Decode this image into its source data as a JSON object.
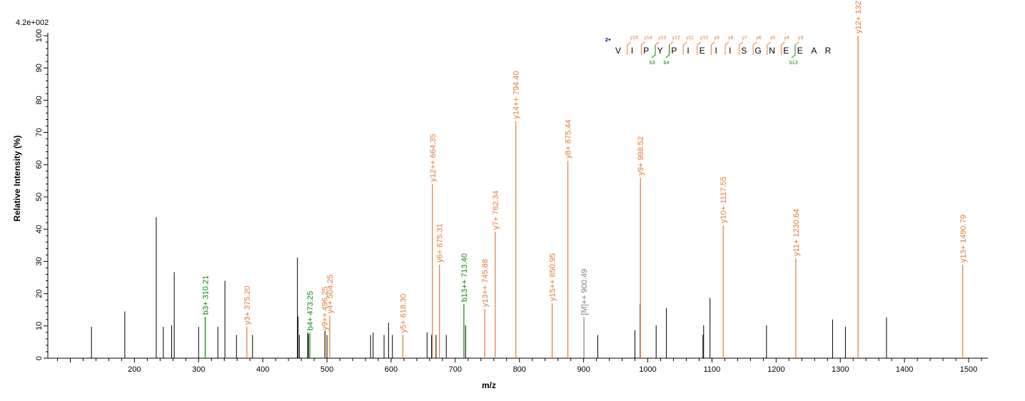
{
  "chart_data": {
    "type": "bar",
    "title": "",
    "scale_label": "4.2e+002",
    "xlabel": "m/z",
    "ylabel": "Relative  Intensity (%)",
    "xlim": [
      65,
      1530
    ],
    "ylim": [
      0,
      100
    ],
    "x_ticks": [
      200,
      300,
      400,
      500,
      600,
      700,
      800,
      900,
      1000,
      1100,
      1200,
      1300,
      1400,
      1500
    ],
    "y_ticks": [
      0,
      10,
      20,
      30,
      40,
      50,
      60,
      70,
      80,
      90,
      100
    ],
    "grid": false,
    "colors": {
      "y_ion": "#E07B39",
      "b_ion": "#0A8A0A",
      "precursor": "#808080",
      "unannotated": "#000000",
      "charge": "#00008B"
    },
    "unannotated_peaks": [
      {
        "mz": 133,
        "intensity": 9.7
      },
      {
        "mz": 185,
        "intensity": 14.5
      },
      {
        "mz": 234,
        "intensity": 43.7
      },
      {
        "mz": 245,
        "intensity": 9.7
      },
      {
        "mz": 258,
        "intensity": 10.2
      },
      {
        "mz": 262,
        "intensity": 26.7
      },
      {
        "mz": 300,
        "intensity": 9.7
      },
      {
        "mz": 330,
        "intensity": 9.7
      },
      {
        "mz": 341,
        "intensity": 24.0
      },
      {
        "mz": 359,
        "intensity": 7.2
      },
      {
        "mz": 384,
        "intensity": 7.2
      },
      {
        "mz": 454,
        "intensity": 31.2
      },
      {
        "mz": 455,
        "intensity": 12.9
      },
      {
        "mz": 457,
        "intensity": 7.2
      },
      {
        "mz": 470,
        "intensity": 8.0
      },
      {
        "mz": 471,
        "intensity": 7.5
      },
      {
        "mz": 497,
        "intensity": 8.5
      },
      {
        "mz": 500,
        "intensity": 7.2
      },
      {
        "mz": 568,
        "intensity": 7.2
      },
      {
        "mz": 572,
        "intensity": 8.0
      },
      {
        "mz": 589,
        "intensity": 7.2
      },
      {
        "mz": 596,
        "intensity": 11.0
      },
      {
        "mz": 602,
        "intensity": 7.2
      },
      {
        "mz": 656,
        "intensity": 8.0
      },
      {
        "mz": 663,
        "intensity": 7.2
      },
      {
        "mz": 670,
        "intensity": 7.2
      },
      {
        "mz": 686,
        "intensity": 7.2
      },
      {
        "mz": 716,
        "intensity": 10.2
      },
      {
        "mz": 922,
        "intensity": 7.2
      },
      {
        "mz": 980,
        "intensity": 8.7
      },
      {
        "mz": 988,
        "intensity": 16.9
      },
      {
        "mz": 1013,
        "intensity": 10.2
      },
      {
        "mz": 1029,
        "intensity": 15.5
      },
      {
        "mz": 1086,
        "intensity": 7.2
      },
      {
        "mz": 1087,
        "intensity": 10.2
      },
      {
        "mz": 1097,
        "intensity": 18.7
      },
      {
        "mz": 1185,
        "intensity": 10.2
      },
      {
        "mz": 1288,
        "intensity": 12.0
      },
      {
        "mz": 1308,
        "intensity": 9.7
      },
      {
        "mz": 1372,
        "intensity": 12.7
      }
    ],
    "annotated_peaks": [
      {
        "mz": 310.21,
        "intensity": 12.8,
        "label": "b3+ 310.21",
        "ion": "b"
      },
      {
        "mz": 375.2,
        "intensity": 9.7,
        "label": "y3+ 375.20",
        "ion": "y"
      },
      {
        "mz": 473.25,
        "intensity": 7.9,
        "label": "b4+ 473.25",
        "ion": "b"
      },
      {
        "mz": 496.25,
        "intensity": 8.0,
        "label": "y9++ 496.25",
        "ion": "y"
      },
      {
        "mz": 504.25,
        "intensity": 13.2,
        "label": "y4+ 504.25",
        "ion": "y"
      },
      {
        "mz": 618.3,
        "intensity": 7.2,
        "label": "y5+ 618.30",
        "ion": "y"
      },
      {
        "mz": 664.35,
        "intensity": 54.0,
        "label": "y12++ 664.35",
        "ion": "y"
      },
      {
        "mz": 675.31,
        "intensity": 29.0,
        "label": "y6+ 675.31",
        "ion": "y"
      },
      {
        "mz": 713.4,
        "intensity": 16.8,
        "label": "b13++ 713.40",
        "ion": "b"
      },
      {
        "mz": 745.88,
        "intensity": 15.2,
        "label": "y13++ 745.88",
        "ion": "y"
      },
      {
        "mz": 762.34,
        "intensity": 39.2,
        "label": "y7+ 762.34",
        "ion": "y"
      },
      {
        "mz": 794.4,
        "intensity": 73.5,
        "label": "y14++ 794.40",
        "ion": "y"
      },
      {
        "mz": 850.95,
        "intensity": 17.0,
        "label": "y15++ 850.95",
        "ion": "y"
      },
      {
        "mz": 875.44,
        "intensity": 61.2,
        "label": "y8+ 875.44",
        "ion": "y"
      },
      {
        "mz": 900.49,
        "intensity": 12.7,
        "label": "[M]++ 900.49",
        "ion": "M"
      },
      {
        "mz": 988.52,
        "intensity": 56.0,
        "label": "y9+ 988.52",
        "ion": "y"
      },
      {
        "mz": 1117.55,
        "intensity": 41.2,
        "label": "y10+ 1117.55",
        "ion": "y"
      },
      {
        "mz": 1230.64,
        "intensity": 31.0,
        "label": "y11+ 1230.64",
        "ion": "y"
      },
      {
        "mz": 1327.72,
        "intensity": 100.0,
        "label": "y12+ 1327.72",
        "ion": "y"
      },
      {
        "mz": 1490.79,
        "intensity": 29.0,
        "label": "y13+ 1490.79",
        "ion": "y"
      }
    ],
    "sequence": {
      "charge": "2+",
      "residues": [
        "V",
        "I",
        "P",
        "Y",
        "P",
        "I",
        "E",
        "I",
        "I",
        "S",
        "G",
        "N",
        "E",
        "E",
        "A",
        "R"
      ],
      "y_ions": [
        "y15",
        "y14",
        "y13",
        "y12",
        "y11",
        "y10",
        "y9",
        "y8",
        "y7",
        "y6",
        "y5",
        "y4",
        "y3"
      ],
      "b_ions": [
        "b3",
        "b4",
        "b13"
      ]
    }
  }
}
